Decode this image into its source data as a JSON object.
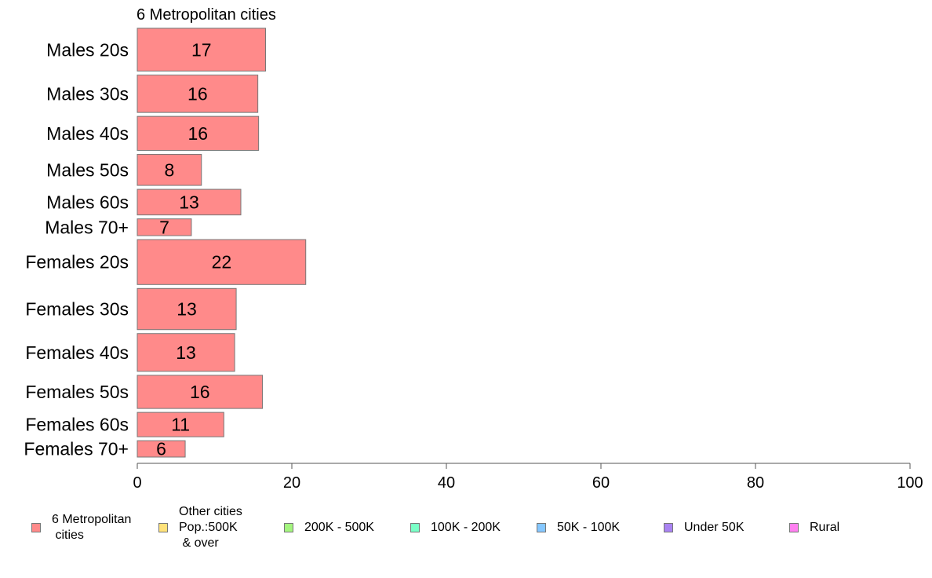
{
  "chart_data": {
    "type": "bar",
    "orientation": "horizontal",
    "title": "6 Metropolitan cities",
    "categories": [
      "Males 20s",
      "Males 30s",
      "Males 40s",
      "Males 50s",
      "Males 60s",
      "Males 70+",
      "Females 20s",
      "Females 30s",
      "Females 40s",
      "Females 50s",
      "Females 60s",
      "Females 70+"
    ],
    "series": [
      {
        "name": "6 Metropolitan cities",
        "values": [
          16.6,
          15.6,
          15.7,
          8.3,
          13.4,
          7.0,
          21.8,
          12.8,
          12.6,
          16.2,
          11.2,
          6.2
        ],
        "labels": [
          "17",
          "16",
          "16",
          "8",
          "13",
          "7",
          "22",
          "13",
          "13",
          "16",
          "11",
          "6"
        ]
      }
    ],
    "relative_widths": [
      1.02,
      0.89,
      0.81,
      0.74,
      0.61,
      0.4,
      1.07,
      0.98,
      0.9,
      0.79,
      0.58,
      0.39
    ],
    "xlim": [
      0,
      100
    ],
    "xticks": [
      "0",
      "20",
      "40",
      "60",
      "80",
      "100"
    ],
    "grid": false,
    "bar_color": "#ff8a8a",
    "legend": {
      "placement": "bottom",
      "items": [
        {
          "label": "6 Metropolitan\n cities",
          "color": "#ff8a8a"
        },
        {
          "label": "Other cities\nPop.:500K\n & over",
          "color": "#ffe27a"
        },
        {
          "label": "200K - 500K",
          "color": "#a4f57f"
        },
        {
          "label": "100K - 200K",
          "color": "#7affc7"
        },
        {
          "label": "50K - 100K",
          "color": "#85c7ff"
        },
        {
          "label": "Under 50K",
          "color": "#a983f2"
        },
        {
          "label": "Rural",
          "color": "#ff80f0"
        }
      ]
    }
  }
}
